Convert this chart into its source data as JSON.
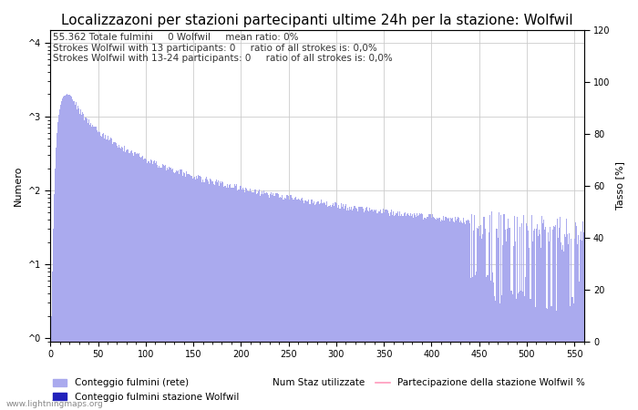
{
  "title": "Localizzazoni per stazioni partecipanti ultime 24h per la stazione: Wolfwil",
  "annotation_lines": [
    "55.362 Totale fulmini     0 Wolfwil     mean ratio: 0%",
    "Strokes Wolfwil with 13 participants: 0     ratio of all strokes is: 0,0%",
    "Strokes Wolfwil with 13-24 participants: 0     ratio of all strokes is: 0,0%"
  ],
  "ylabel_left": "Numero",
  "ylabel_right": "Tasso [%]",
  "xlim": [
    0,
    560
  ],
  "ylim_right": [
    0,
    120
  ],
  "yticks_right": [
    0,
    20,
    40,
    60,
    80,
    100,
    120
  ],
  "yticks_left_vals": [
    1,
    10,
    100,
    1000,
    10000
  ],
  "yticks_left_labels": [
    "^0",
    "^1",
    "^2",
    "^3",
    "^4"
  ],
  "bar_color_network": "#aaaaee",
  "bar_color_station": "#2222bb",
  "line_color_participation": "#ff99bb",
  "legend_labels": [
    "Conteggio fulmini (rete)",
    "Conteggio fulmini stazione Wolfwil",
    "Num Staz utilizzate",
    "Partecipazione della stazione Wolfwil %"
  ],
  "watermark": "www.lightningmaps.org",
  "background_color": "#ffffff",
  "grid_color": "#cccccc",
  "title_fontsize": 11,
  "axis_fontsize": 8,
  "annotation_fontsize": 7.5,
  "tick_fontsize": 7,
  "legend_fontsize": 7.5,
  "xticks": [
    0,
    50,
    100,
    150,
    200,
    250,
    300,
    350,
    400,
    450,
    500,
    550
  ]
}
